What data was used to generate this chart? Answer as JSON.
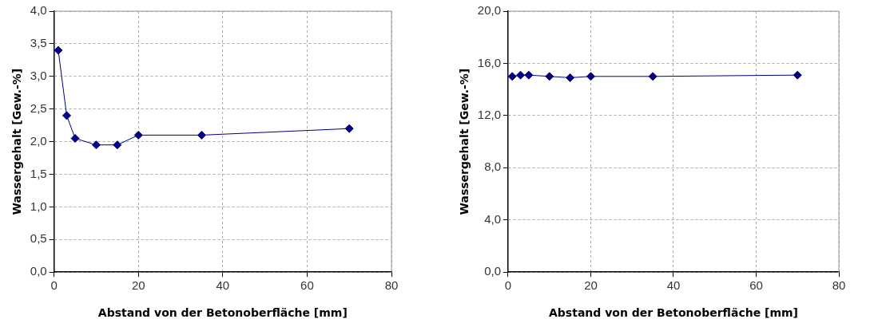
{
  "chart_data": [
    {
      "type": "line",
      "xlabel": "Abstand von der Betonoberfläche [mm]",
      "ylabel": "Wassergehalt [Gew.-%]",
      "x": [
        1,
        3,
        5,
        10,
        15,
        20,
        35,
        70
      ],
      "series": [
        {
          "color": "#000080",
          "values": [
            3.4,
            2.4,
            2.05,
            1.95,
            1.95,
            2.1,
            2.1,
            2.2
          ]
        }
      ],
      "xlim": [
        0,
        80
      ],
      "xticks": [
        0,
        20,
        40,
        60,
        80
      ],
      "ylim": [
        0,
        4
      ],
      "yticks": [
        {
          "value": 0,
          "label": "0,0"
        },
        {
          "value": 0.5,
          "label": "0,5"
        },
        {
          "value": 1,
          "label": "1,0"
        },
        {
          "value": 1.5,
          "label": "1,5"
        },
        {
          "value": 2,
          "label": "2,0"
        },
        {
          "value": 2.5,
          "label": "2,5"
        },
        {
          "value": 3,
          "label": "3,0"
        },
        {
          "value": 3.5,
          "label": "3,5"
        },
        {
          "value": 4,
          "label": "4,0"
        }
      ],
      "grid": true,
      "legend": false,
      "marker": "diamond",
      "line_style": "solid"
    },
    {
      "type": "line",
      "xlabel": "Abstand von der Betonoberfläche [mm]",
      "ylabel": "Wassergehalt [Gew.-%]",
      "x": [
        1,
        3,
        5,
        10,
        15,
        20,
        35,
        70
      ],
      "series": [
        {
          "color": "#000080",
          "values": [
            15.0,
            15.1,
            15.1,
            15.0,
            14.9,
            15.0,
            15.0,
            15.1
          ]
        }
      ],
      "xlim": [
        0,
        80
      ],
      "xticks": [
        0,
        20,
        40,
        60,
        80
      ],
      "ylim": [
        0,
        20
      ],
      "yticks": [
        {
          "value": 0,
          "label": "0,0"
        },
        {
          "value": 4,
          "label": "4,0"
        },
        {
          "value": 8,
          "label": "8,0"
        },
        {
          "value": 12,
          "label": "12,0"
        },
        {
          "value": 16,
          "label": "16,0"
        },
        {
          "value": 20,
          "label": "20,0"
        }
      ],
      "grid": true,
      "legend": false,
      "marker": "diamond",
      "line_style": "solid"
    }
  ]
}
